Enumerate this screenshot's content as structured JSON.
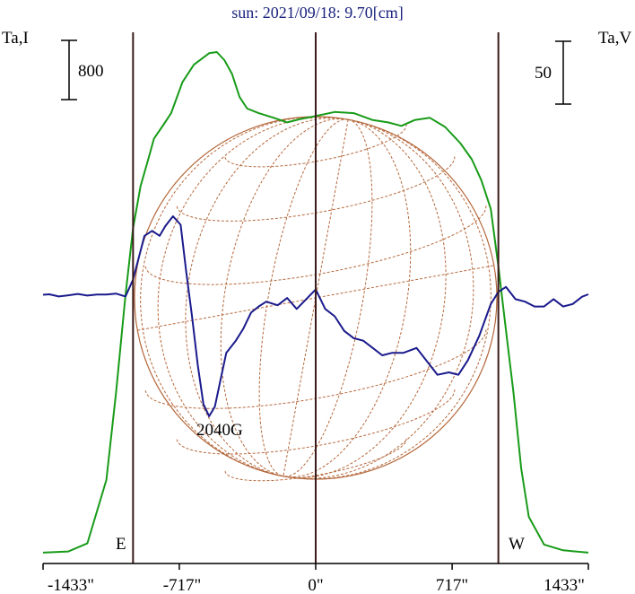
{
  "chart_data": {
    "type": "line",
    "title": "sun: 2021/09/18: 9.70[cm]",
    "ylabel_left": "Ta,I",
    "ylabel_right": "Ta,V",
    "scale_left": "800",
    "scale_right": "50",
    "x_unit": "arcsec",
    "xlim": [
      -1433,
      1433
    ],
    "x_ticks": [
      {
        "value": -1433,
        "label": "-1433\""
      },
      {
        "value": -717,
        "label": "-717\""
      },
      {
        "value": 0,
        "label": "0\""
      },
      {
        "value": 717,
        "label": "717\""
      },
      {
        "value": 1433,
        "label": "1433\""
      }
    ],
    "limb_labels": {
      "east": "E",
      "west": "W"
    },
    "limb_positions": [
      -960,
      960
    ],
    "annotation": {
      "text": "2040G",
      "x": -480
    },
    "colors": {
      "intensity": "#189b18",
      "polarization": "#1a1a8c",
      "disk": "#b5693d",
      "axis": "#000000",
      "title": "#1a237e",
      "limb_lines": "#3a1a1a"
    },
    "series": [
      {
        "key": "intensity",
        "points": [
          [
            -1433,
            -30
          ],
          [
            -1300,
            -20
          ],
          [
            -1200,
            50
          ],
          [
            -1100,
            600
          ],
          [
            -1050,
            1350
          ],
          [
            -1000,
            2200
          ],
          [
            -960,
            2780
          ],
          [
            -920,
            3150
          ],
          [
            -880,
            3380
          ],
          [
            -850,
            3560
          ],
          [
            -800,
            3680
          ],
          [
            -760,
            3780
          ],
          [
            -700,
            4050
          ],
          [
            -640,
            4200
          ],
          [
            -560,
            4300
          ],
          [
            -520,
            4310
          ],
          [
            -480,
            4240
          ],
          [
            -440,
            4120
          ],
          [
            -400,
            3920
          ],
          [
            -360,
            3820
          ],
          [
            -300,
            3780
          ],
          [
            -220,
            3740
          ],
          [
            -150,
            3700
          ],
          [
            -80,
            3730
          ],
          [
            0,
            3755
          ],
          [
            100,
            3790
          ],
          [
            200,
            3780
          ],
          [
            300,
            3720
          ],
          [
            380,
            3700
          ],
          [
            450,
            3670
          ],
          [
            520,
            3720
          ],
          [
            600,
            3740
          ],
          [
            680,
            3660
          ],
          [
            760,
            3520
          ],
          [
            820,
            3380
          ],
          [
            870,
            3200
          ],
          [
            920,
            2950
          ],
          [
            960,
            2450
          ],
          [
            1000,
            1900
          ],
          [
            1040,
            1350
          ],
          [
            1080,
            700
          ],
          [
            1120,
            280
          ],
          [
            1200,
            40
          ],
          [
            1300,
            -10
          ],
          [
            1433,
            -30
          ]
        ]
      },
      {
        "key": "polarization",
        "points": [
          [
            -1433,
            -0.4
          ],
          [
            -1400,
            0
          ],
          [
            -1350,
            -1.8
          ],
          [
            -1300,
            -0.8
          ],
          [
            -1250,
            0.3
          ],
          [
            -1200,
            -1.0
          ],
          [
            -1150,
            -0.2
          ],
          [
            -1100,
            -0.2
          ],
          [
            -1050,
            0.6
          ],
          [
            -1000,
            -1.8
          ],
          [
            -960,
            12
          ],
          [
            -930,
            30
          ],
          [
            -900,
            48
          ],
          [
            -860,
            52
          ],
          [
            -820,
            48
          ],
          [
            -790,
            56
          ],
          [
            -750,
            64
          ],
          [
            -710,
            57
          ],
          [
            -680,
            18
          ],
          [
            -650,
            -18
          ],
          [
            -620,
            -58
          ],
          [
            -590,
            -90
          ],
          [
            -560,
            -100
          ],
          [
            -530,
            -92
          ],
          [
            -500,
            -70
          ],
          [
            -470,
            -48
          ],
          [
            -420,
            -38
          ],
          [
            -380,
            -28
          ],
          [
            -340,
            -15
          ],
          [
            -300,
            -10
          ],
          [
            -260,
            -6
          ],
          [
            -200,
            -9
          ],
          [
            -150,
            -3
          ],
          [
            -100,
            -12
          ],
          [
            -50,
            -4
          ],
          [
            0,
            4
          ],
          [
            50,
            -12
          ],
          [
            100,
            -18
          ],
          [
            150,
            -30
          ],
          [
            200,
            -36
          ],
          [
            250,
            -38
          ],
          [
            300,
            -44
          ],
          [
            350,
            -50
          ],
          [
            400,
            -48
          ],
          [
            460,
            -48
          ],
          [
            530,
            -44
          ],
          [
            590,
            -56
          ],
          [
            640,
            -66
          ],
          [
            700,
            -64
          ],
          [
            750,
            -66
          ],
          [
            800,
            -54
          ],
          [
            860,
            -34
          ],
          [
            920,
            -8
          ],
          [
            960,
            2
          ],
          [
            1000,
            6
          ],
          [
            1050,
            -4
          ],
          [
            1100,
            -6
          ],
          [
            1150,
            -10
          ],
          [
            1200,
            -10
          ],
          [
            1250,
            -4
          ],
          [
            1300,
            -10
          ],
          [
            1350,
            -8
          ],
          [
            1400,
            -2
          ],
          [
            1433,
            0
          ]
        ]
      }
    ]
  }
}
